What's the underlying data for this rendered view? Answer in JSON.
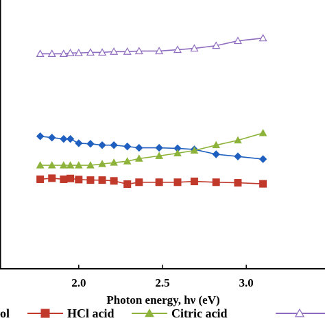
{
  "chart_data": {
    "type": "line",
    "xlabel": "Photon energy, hν (eV)",
    "ylabel": "",
    "xlim": [
      1.53,
      3.47
    ],
    "ylim": [
      0,
      1
    ],
    "xticks": [
      {
        "value": 2.0,
        "label": "2.0"
      },
      {
        "value": 2.5,
        "label": "2.5"
      },
      {
        "value": 3.0,
        "label": "3.0"
      }
    ],
    "grid": false,
    "legend_position": "bottom",
    "series": [
      {
        "name": "",
        "legend_label": "ol",
        "color": "#1f5fbf",
        "marker": "diamond",
        "x": [
          1.77,
          1.84,
          1.91,
          1.95,
          2.0,
          2.07,
          2.14,
          2.21,
          2.29,
          2.36,
          2.48,
          2.59,
          2.69,
          2.82,
          2.95,
          3.1
        ],
        "y": [
          0.493,
          0.488,
          0.483,
          0.483,
          0.467,
          0.465,
          0.46,
          0.46,
          0.455,
          0.45,
          0.45,
          0.448,
          0.444,
          0.426,
          0.418,
          0.408
        ]
      },
      {
        "name": "HCl acid",
        "legend_label": "HCl acid",
        "color": "#c0392b",
        "marker": "square",
        "x": [
          1.77,
          1.84,
          1.91,
          1.95,
          2.0,
          2.07,
          2.14,
          2.21,
          2.29,
          2.36,
          2.48,
          2.59,
          2.69,
          2.82,
          2.95,
          3.1
        ],
        "y": [
          0.333,
          0.337,
          0.333,
          0.336,
          0.332,
          0.33,
          0.33,
          0.327,
          0.315,
          0.322,
          0.322,
          0.322,
          0.325,
          0.322,
          0.32,
          0.316
        ]
      },
      {
        "name": "Citric acid",
        "legend_label": "Citric acid",
        "color": "#8db33a",
        "marker": "triangle",
        "x": [
          1.77,
          1.84,
          1.91,
          1.95,
          2.0,
          2.07,
          2.14,
          2.21,
          2.29,
          2.36,
          2.48,
          2.59,
          2.69,
          2.82,
          2.95,
          3.1
        ],
        "y": [
          0.385,
          0.385,
          0.385,
          0.385,
          0.385,
          0.385,
          0.39,
          0.395,
          0.4,
          0.41,
          0.42,
          0.43,
          0.44,
          0.46,
          0.478,
          0.505
        ]
      },
      {
        "name": "",
        "legend_label": "",
        "color": "#8e6bbf",
        "marker": "open-triangle",
        "x": [
          1.77,
          1.84,
          1.91,
          1.95,
          2.0,
          2.07,
          2.14,
          2.21,
          2.29,
          2.36,
          2.48,
          2.59,
          2.69,
          2.82,
          2.95,
          3.1
        ],
        "y": [
          0.8,
          0.8,
          0.8,
          0.803,
          0.803,
          0.805,
          0.805,
          0.808,
          0.808,
          0.81,
          0.81,
          0.815,
          0.82,
          0.83,
          0.848,
          0.858
        ]
      }
    ]
  }
}
